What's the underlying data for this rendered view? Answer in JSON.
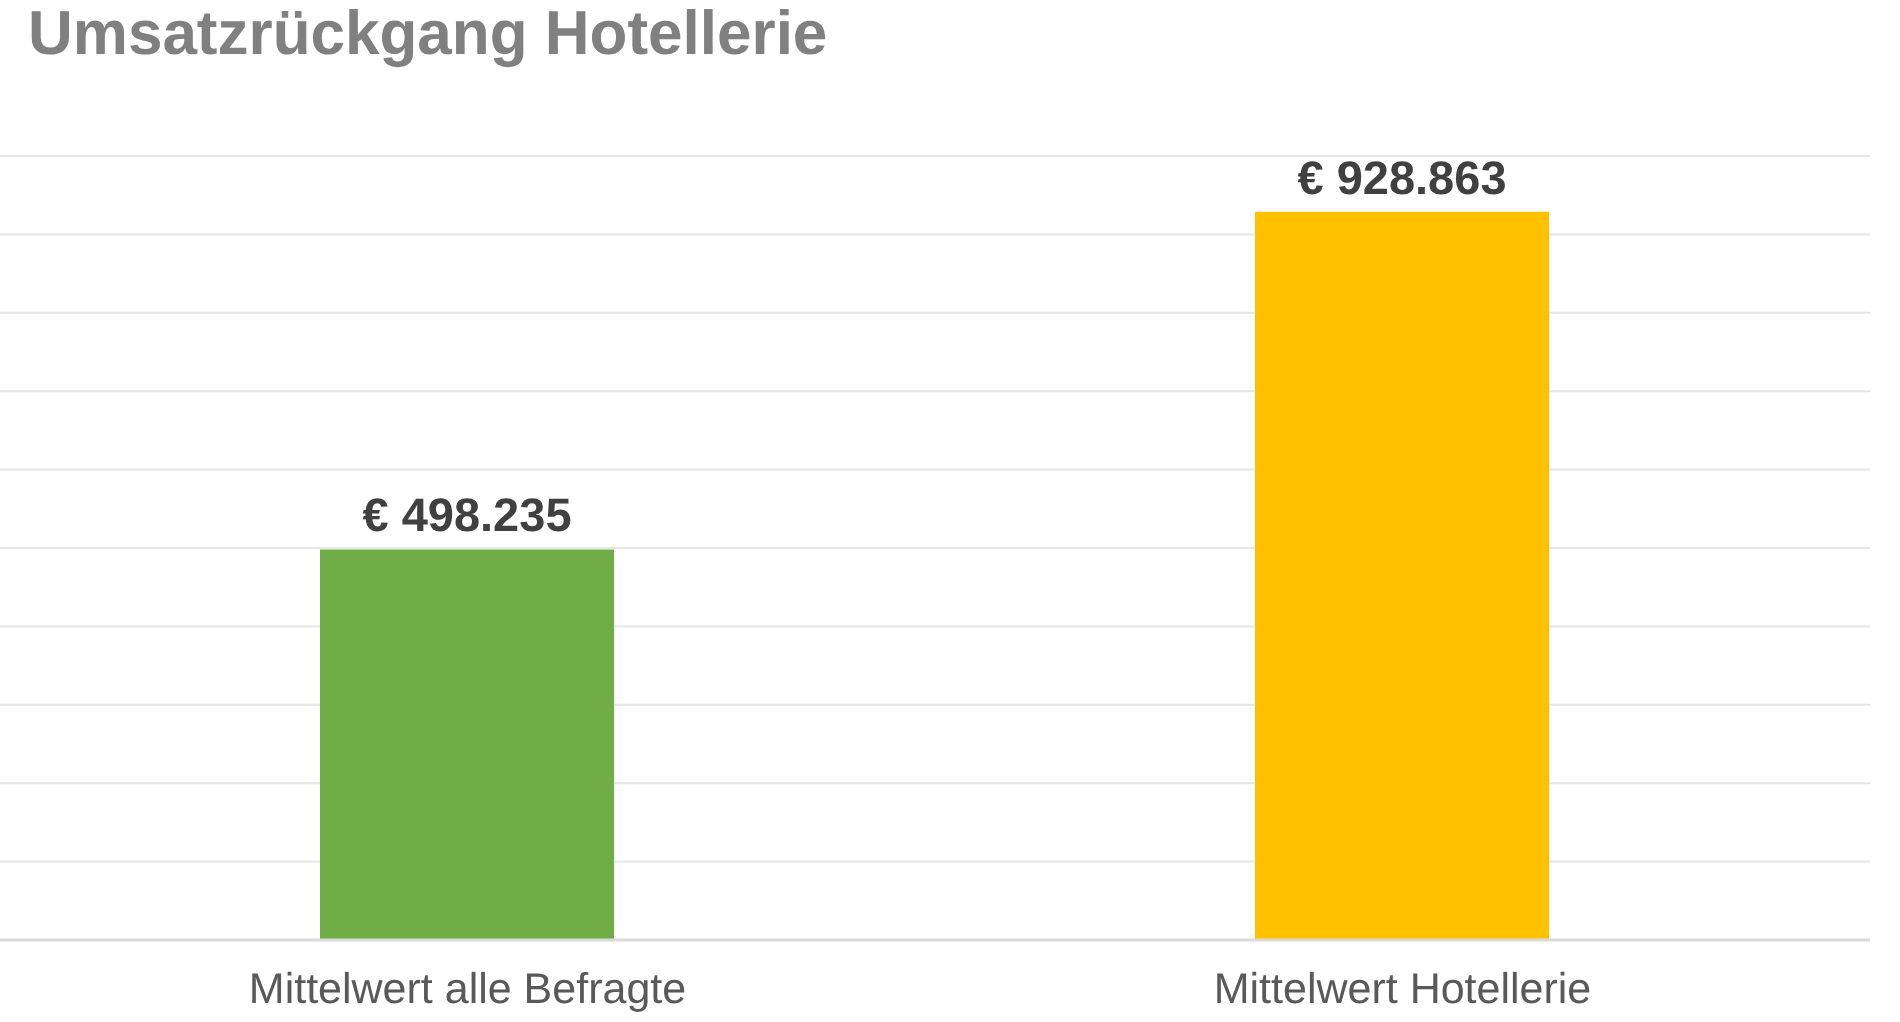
{
  "chart_data": {
    "type": "bar",
    "title": "Umsatzrückgang Hotellerie",
    "categories": [
      "Mittelwert alle Befragte",
      "Mittelwert Hotellerie"
    ],
    "values": [
      498235,
      928863
    ],
    "colors": [
      "#70ad47",
      "#ffc000"
    ],
    "value_labels": [
      "€ 498.235",
      "€ 928.863"
    ],
    "ylim": [
      0,
      1000000
    ],
    "grid": "y",
    "tick_labels": "x"
  }
}
